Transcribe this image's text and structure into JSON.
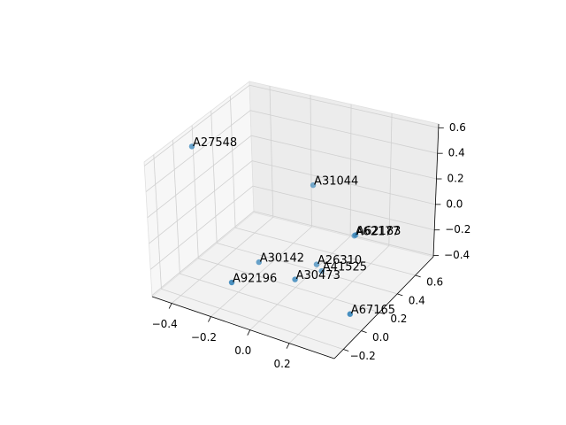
{
  "chart_data": {
    "type": "scatter3d",
    "labels": [
      "A27548",
      "A31044",
      "A62177",
      "A62183",
      "A30142",
      "A26310",
      "A41525",
      "A30473",
      "A92196",
      "A67165"
    ],
    "x": [
      -0.435,
      -0.032,
      0.128,
      0.13,
      -0.188,
      0.018,
      0.05,
      0.024,
      -0.176,
      0.326
    ],
    "y": [
      0.058,
      0.468,
      0.57,
      0.58,
      0.203,
      0.392,
      0.38,
      0.145,
      -0.115,
      0.1
    ],
    "z": [
      0.578,
      0.2,
      -0.2,
      -0.2,
      -0.3,
      -0.35,
      -0.38,
      -0.3,
      -0.25,
      -0.4
    ],
    "color": "#1f77b4",
    "xlim": [
      -0.5,
      0.43
    ],
    "ylim": [
      -0.3,
      0.8
    ],
    "zlim": [
      -0.41,
      0.63
    ],
    "xticks": [
      {
        "value": -0.4,
        "label": "−0.4"
      },
      {
        "value": -0.2,
        "label": "−0.2"
      },
      {
        "value": 0.0,
        "label": "0.0"
      },
      0.2
    ],
    "yticks": [
      {
        "value": -0.2,
        "label": "−0.2"
      },
      {
        "value": 0.0,
        "label": "0.0"
      },
      0.2,
      0.4,
      0.6
    ],
    "zticks": [
      {
        "value": -0.4,
        "label": "−0.4"
      },
      {
        "value": -0.2,
        "label": "−0.2"
      },
      {
        "value": 0.0,
        "label": "0.0"
      },
      0.2,
      0.4,
      0.6
    ],
    "grid": true
  }
}
